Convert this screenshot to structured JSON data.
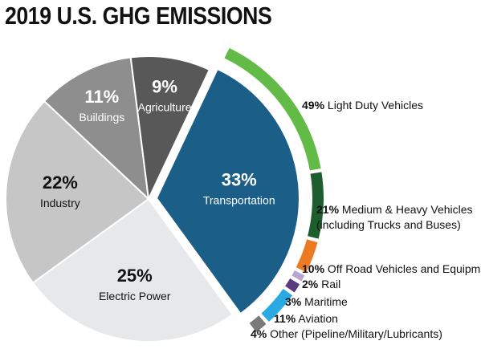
{
  "chart_data": {
    "type": "pie",
    "title": "2019 U.S. GHG EMISSIONS",
    "slices": [
      {
        "label": "Transportation",
        "value": 33,
        "color": "#1b5e88"
      },
      {
        "label": "Electric Power",
        "value": 25,
        "color": "#e7e8e9"
      },
      {
        "label": "Industry",
        "value": 22,
        "color": "#c6c6c6"
      },
      {
        "label": "Buildings",
        "value": 11,
        "color": "#8e8e8e"
      },
      {
        "label": "Agriculture",
        "value": 9,
        "color": "#585858"
      }
    ],
    "slice_labels": [
      "33%",
      "25%",
      "22%",
      "11%",
      "9%"
    ],
    "breakdown": {
      "parent": "Transportation",
      "items": [
        {
          "pct": "49%",
          "label": "Light Duty Vehicles",
          "value": 49,
          "color": "#62bb46"
        },
        {
          "pct": "21%",
          "label": "Medium & Heavy Vehicles",
          "label2": "(including Trucks and Buses)",
          "value": 21,
          "color": "#1e5e2e"
        },
        {
          "pct": "10%",
          "label": "Off Road Vehicles and Equipment",
          "value": 10,
          "color": "#ec7a23"
        },
        {
          "pct": "2%",
          "label": "Rail",
          "value": 2,
          "color": "#b9a6cf"
        },
        {
          "pct": "3%",
          "label": "Maritime",
          "value": 3,
          "color": "#5a3c7e"
        },
        {
          "pct": "11%",
          "label": "Aviation",
          "value": 11,
          "color": "#2aaae2"
        },
        {
          "pct": "4%",
          "label": "Other (Pipeline/Military/Lubricants)",
          "value": 4,
          "color": "#7a7a7a"
        }
      ]
    }
  }
}
